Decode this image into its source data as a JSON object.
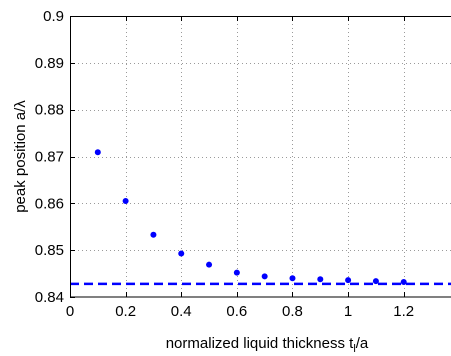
{
  "chart_data": {
    "type": "scatter",
    "title": "",
    "xlabel": "normalized liquid thickness t",
    "xlabel_subscript": "l",
    "xlabel_suffix": "/a",
    "ylabel": "peak position a/λ",
    "xlim": [
      0,
      1.37
    ],
    "ylim": [
      0.84,
      0.9
    ],
    "xticks": [
      0,
      0.2,
      0.4,
      0.6,
      0.8,
      1,
      1.2
    ],
    "xtick_labels": [
      "0",
      "0.2",
      "0.4",
      "0.6",
      "0.8",
      "1",
      "1.2"
    ],
    "yticks": [
      0.84,
      0.85,
      0.86,
      0.87,
      0.88,
      0.89,
      0.9
    ],
    "ytick_labels": [
      "0.84",
      "0.85",
      "0.86",
      "0.87",
      "0.88",
      "0.89",
      "0.9"
    ],
    "grid": true,
    "series": [
      {
        "marker": "dot",
        "color": "#0000ff",
        "x": [
          0.1,
          0.2,
          0.3,
          0.4,
          0.5,
          0.6,
          0.7,
          0.8,
          0.9,
          1.0,
          1.1,
          1.2
        ],
        "y": [
          0.8709,
          0.8605,
          0.8533,
          0.8493,
          0.8469,
          0.8452,
          0.8444,
          0.844,
          0.8438,
          0.8436,
          0.8434,
          0.8432
        ]
      }
    ],
    "reference_lines": [
      {
        "style": "dashed",
        "color": "#0000ff",
        "y": 0.8428
      }
    ]
  }
}
